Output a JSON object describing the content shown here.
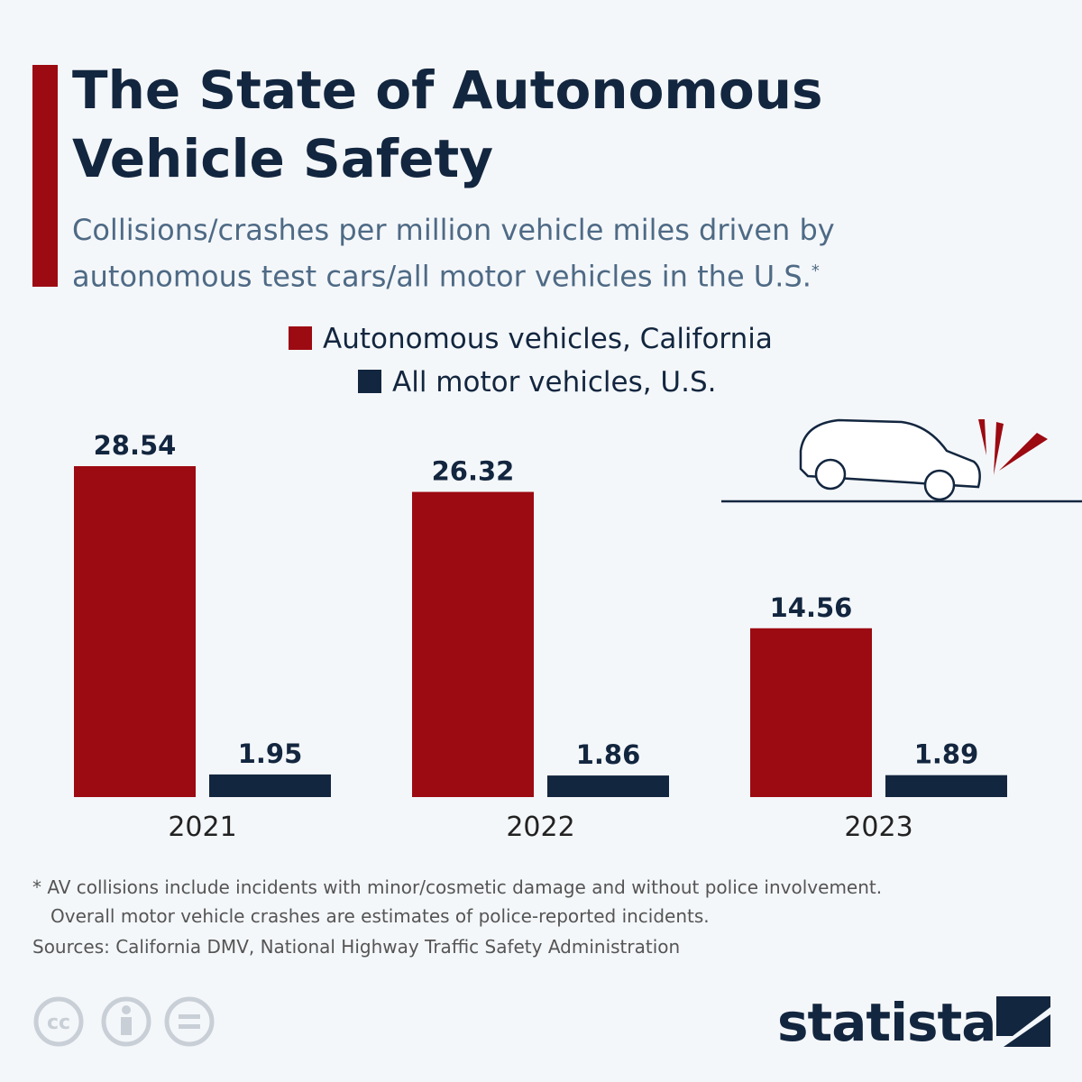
{
  "chart_data": {
    "type": "bar",
    "title": "The State of Autonomous Vehicle Safety",
    "subtitle": "Collisions/crashes per million vehicle miles driven by autonomous test cars/all motor vehicles in the U.S.",
    "subtitle_marker": "*",
    "categories": [
      "2021",
      "2022",
      "2023"
    ],
    "series": [
      {
        "name": "Autonomous vehicles, California",
        "color": "#9c0a12",
        "values": [
          28.54,
          26.32,
          14.56
        ]
      },
      {
        "name": "All motor vehicles, U.S.",
        "color": "#13263f",
        "values": [
          1.95,
          1.86,
          1.89
        ]
      }
    ],
    "footnote": [
      "* AV collisions include incidents with minor/cosmetic damage and without police involvement.",
      "Overall motor vehicle crashes are estimates of police-reported incidents."
    ],
    "source": "Sources: California DMV, National Highway Traffic Safety Administration",
    "brand": "statista"
  }
}
